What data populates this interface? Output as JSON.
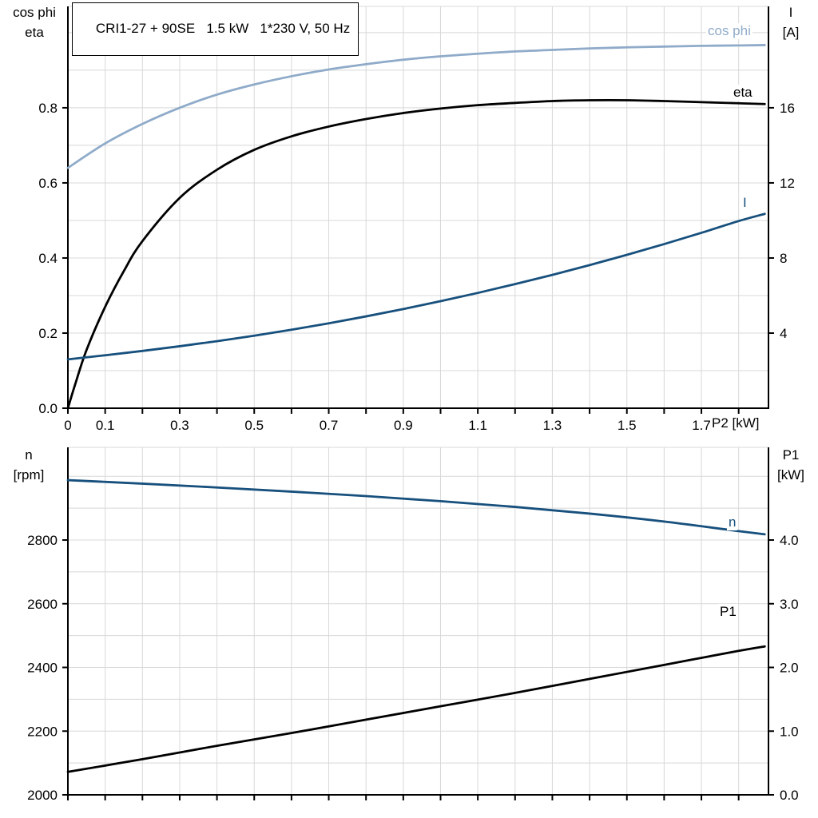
{
  "colors": {
    "dark_blue": "#17507d",
    "light_blue": "#8fabc9",
    "black": "#000000",
    "grid": "#d8d8d8"
  },
  "chart_data": [
    {
      "type": "line",
      "title": "CRI1-27 + 90SE   1.5 kW   1*230 V, 50 Hz",
      "x_axis": {
        "label": "P2 [kW]",
        "min": 0,
        "max": 1.88,
        "grid_step": 0.1,
        "tick_values": [
          0,
          0.1,
          0.3,
          0.5,
          0.7,
          0.9,
          1.1,
          1.3,
          1.5,
          1.7
        ],
        "tick_labels": [
          "0",
          "0.1",
          "0.3",
          "0.5",
          "0.7",
          "0.9",
          "1.1",
          "1.3",
          "1.5",
          "1.7"
        ]
      },
      "left_axis": {
        "title_lines": [
          "cos phi",
          "eta"
        ],
        "min": 0,
        "max": 1.07,
        "grid_step": 0.1,
        "tick_values": [
          0,
          0.2,
          0.4,
          0.6,
          0.8
        ],
        "tick_labels": [
          "0.0",
          "0.2",
          "0.4",
          "0.6",
          "0.8"
        ]
      },
      "right_axis": {
        "title_lines": [
          "I",
          "[A]"
        ],
        "min": 0,
        "max": 21.4,
        "tick_values": [
          4,
          8,
          12,
          16
        ],
        "tick_labels": [
          "4",
          "8",
          "12",
          "16"
        ]
      },
      "series": [
        {
          "name": "cos phi",
          "axis": "left",
          "color": "#8fabc9",
          "x": [
            0,
            0.1,
            0.2,
            0.3,
            0.4,
            0.5,
            0.6,
            0.7,
            0.8,
            0.9,
            1.0,
            1.1,
            1.2,
            1.3,
            1.4,
            1.5,
            1.6,
            1.7,
            1.8,
            1.87
          ],
          "y": [
            0.64,
            0.705,
            0.757,
            0.8,
            0.835,
            0.862,
            0.884,
            0.902,
            0.916,
            0.928,
            0.937,
            0.944,
            0.95,
            0.954,
            0.958,
            0.961,
            0.963,
            0.965,
            0.966,
            0.967
          ]
        },
        {
          "name": "eta",
          "axis": "left",
          "color": "#000000",
          "x": [
            0,
            0.02,
            0.05,
            0.1,
            0.15,
            0.2,
            0.3,
            0.4,
            0.5,
            0.6,
            0.7,
            0.8,
            0.9,
            1.0,
            1.1,
            1.2,
            1.3,
            1.4,
            1.5,
            1.6,
            1.7,
            1.8,
            1.87
          ],
          "y": [
            0,
            0.065,
            0.155,
            0.27,
            0.365,
            0.445,
            0.56,
            0.635,
            0.688,
            0.724,
            0.75,
            0.77,
            0.786,
            0.798,
            0.807,
            0.813,
            0.818,
            0.82,
            0.82,
            0.818,
            0.815,
            0.812,
            0.81
          ]
        },
        {
          "name": "I",
          "axis": "right",
          "color": "#17507d",
          "x": [
            0,
            0.1,
            0.2,
            0.3,
            0.4,
            0.5,
            0.6,
            0.7,
            0.8,
            0.9,
            1.0,
            1.1,
            1.2,
            1.3,
            1.4,
            1.5,
            1.6,
            1.7,
            1.8,
            1.87
          ],
          "y": [
            2.6,
            2.82,
            3.05,
            3.3,
            3.57,
            3.86,
            4.18,
            4.52,
            4.89,
            5.28,
            5.7,
            6.14,
            6.61,
            7.1,
            7.62,
            8.17,
            8.74,
            9.34,
            9.97,
            10.35
          ]
        }
      ]
    },
    {
      "type": "line",
      "x_axis": {
        "label": "",
        "min": 0,
        "max": 1.88,
        "grid_step": 0.1,
        "tick_values": [],
        "tick_labels": []
      },
      "left_axis": {
        "title_lines": [
          "n",
          "[rpm]"
        ],
        "min": 2000,
        "max": 3091,
        "grid_step": 100,
        "tick_values": [
          2000,
          2200,
          2400,
          2600,
          2800
        ],
        "tick_labels": [
          "2000",
          "2200",
          "2400",
          "2600",
          "2800"
        ]
      },
      "right_axis": {
        "title_lines": [
          "P1",
          "[kW]"
        ],
        "min": 0,
        "max": 5.455,
        "tick_values": [
          0,
          1,
          2,
          3,
          4
        ],
        "tick_labels": [
          "0.0",
          "1.0",
          "2.0",
          "3.0",
          "4.0"
        ]
      },
      "series": [
        {
          "name": "n",
          "axis": "left",
          "color": "#17507d",
          "x": [
            0,
            0.2,
            0.4,
            0.6,
            0.8,
            1.0,
            1.2,
            1.4,
            1.6,
            1.8,
            1.87
          ],
          "y": [
            2988,
            2977,
            2965,
            2952,
            2938,
            2922,
            2904,
            2883,
            2858,
            2828,
            2818
          ]
        },
        {
          "name": "P1",
          "axis": "right",
          "color": "#000000",
          "x": [
            0,
            0.2,
            0.4,
            0.6,
            0.8,
            1.0,
            1.2,
            1.4,
            1.6,
            1.8,
            1.87
          ],
          "y": [
            0.36,
            0.56,
            0.77,
            0.97,
            1.18,
            1.39,
            1.6,
            1.82,
            2.04,
            2.26,
            2.33
          ]
        }
      ]
    }
  ]
}
